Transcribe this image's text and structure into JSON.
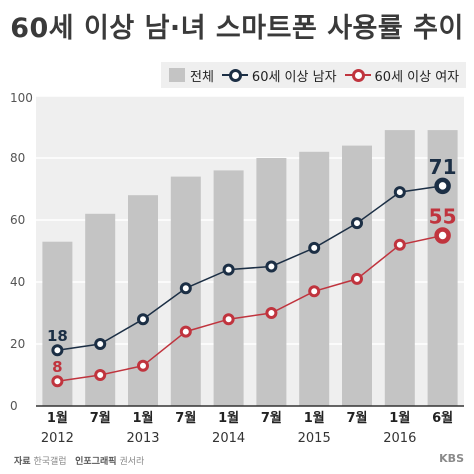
{
  "chart_data": {
    "type": "bar",
    "title": "60세 이상 남·녀 스마트폰 사용률 추이",
    "categories": [
      "1월",
      "7월",
      "1월",
      "7월",
      "1월",
      "7월",
      "1월",
      "7월",
      "1월",
      "6월"
    ],
    "years": [
      {
        "label": "2012",
        "index": 0
      },
      {
        "label": "2013",
        "index": 2
      },
      {
        "label": "2014",
        "index": 4
      },
      {
        "label": "2015",
        "index": 6
      },
      {
        "label": "2016",
        "index": 8
      }
    ],
    "ylim": [
      0,
      100
    ],
    "yticks": [
      "0",
      "20",
      "40",
      "60",
      "80",
      "100"
    ],
    "bars": {
      "name": "전체",
      "values": [
        53,
        62,
        68,
        74,
        76,
        80,
        82,
        84,
        89,
        89
      ],
      "color": "#c4c4c4"
    },
    "series": [
      {
        "name": "60세 이상 남자",
        "values": [
          18,
          20,
          28,
          38,
          44,
          45,
          51,
          59,
          69,
          71
        ],
        "color": "#1c2f45",
        "labels": [
          {
            "index": 0,
            "text": "18"
          },
          {
            "index": 9,
            "text": "71"
          }
        ]
      },
      {
        "name": "60세 이상 여자",
        "values": [
          8,
          10,
          13,
          24,
          28,
          30,
          37,
          41,
          52,
          55
        ],
        "color": "#c0343e",
        "labels": [
          {
            "index": 0,
            "text": "8"
          },
          {
            "index": 9,
            "text": "55"
          }
        ]
      }
    ],
    "grid": true,
    "legend_position": "top-right"
  },
  "footer": {
    "source_label": "자료",
    "source_value": "한국갤럽",
    "graphic_label": "인포그래픽",
    "graphic_value": "권서라",
    "brand": "KBS"
  }
}
